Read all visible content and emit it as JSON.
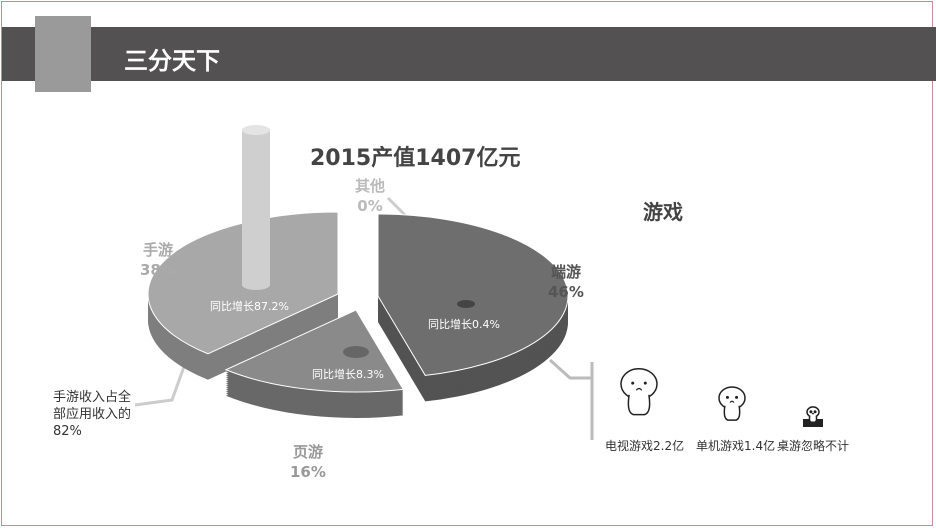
{
  "header": {
    "title": "三分天下"
  },
  "side_title": "游戏",
  "note": "手游收入占全部应用收入的82%",
  "chart_data": {
    "type": "pie",
    "title": "2015产值1407亿元",
    "slices": [
      {
        "name": "端游",
        "value": 46,
        "label": "46%",
        "growth": "同比增长0.4%",
        "color": "#6e6e6e"
      },
      {
        "name": "页游",
        "value": 16,
        "label": "16%",
        "growth": "同比增长8.3%",
        "color": "#8a8a8a"
      },
      {
        "name": "手游",
        "value": 38,
        "label": "38%",
        "growth": "同比增长87.2%",
        "color": "#a8a8a8"
      },
      {
        "name": "其他",
        "value": 0,
        "label": "0%"
      }
    ]
  },
  "others": [
    {
      "label": "电视游戏2.2亿"
    },
    {
      "label": "单机游戏1.4亿"
    },
    {
      "label": "桌游忽略不计"
    }
  ]
}
